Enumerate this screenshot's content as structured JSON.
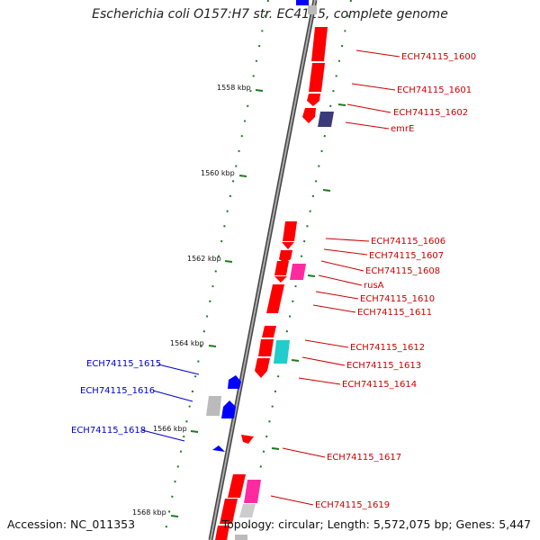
{
  "title": "Escherichia coli O157:H7 str. EC4115, complete genome",
  "accession": "Accession: NC_011353",
  "summary": "Topology: circular; Length: 5,572,075 bp; Genes: 5,447",
  "colors": {
    "forward_gene": "#ff0000",
    "reverse_gene": "#0000ff",
    "backbone": "#888888",
    "tick": "#1e7a1e",
    "cyan_feature": "#22cccc",
    "magenta_feature": "#ff2aa0",
    "navy_feature": "#3b3b7a",
    "grey_feature": "#bbbbbb"
  },
  "kbp_ticks": [
    {
      "label": "1558 kbp"
    },
    {
      "label": "1560 kbp"
    },
    {
      "label": "1562 kbp"
    },
    {
      "label": "1564 kbp"
    },
    {
      "label": "1566 kbp"
    },
    {
      "label": "1568 kbp"
    }
  ],
  "genes": [
    {
      "label": "ECH74115_1600",
      "strand": "forward"
    },
    {
      "label": "ECH74115_1601",
      "strand": "forward"
    },
    {
      "label": "ECH74115_1602",
      "strand": "forward"
    },
    {
      "label": "emrE",
      "strand": "forward"
    },
    {
      "label": "ECH74115_1606",
      "strand": "forward"
    },
    {
      "label": "ECH74115_1607",
      "strand": "forward"
    },
    {
      "label": "ECH74115_1608",
      "strand": "forward"
    },
    {
      "label": "rusA",
      "strand": "forward"
    },
    {
      "label": "ECH74115_1610",
      "strand": "forward"
    },
    {
      "label": "ECH74115_1611",
      "strand": "forward"
    },
    {
      "label": "ECH74115_1612",
      "strand": "forward"
    },
    {
      "label": "ECH74115_1613",
      "strand": "forward"
    },
    {
      "label": "ECH74115_1614",
      "strand": "forward"
    },
    {
      "label": "ECH74115_1617",
      "strand": "forward"
    },
    {
      "label": "ECH74115_1619",
      "strand": "forward"
    },
    {
      "label": "ECH74115_1615",
      "strand": "reverse"
    },
    {
      "label": "ECH74115_1616",
      "strand": "reverse"
    },
    {
      "label": "ECH74115_1618",
      "strand": "reverse"
    }
  ]
}
